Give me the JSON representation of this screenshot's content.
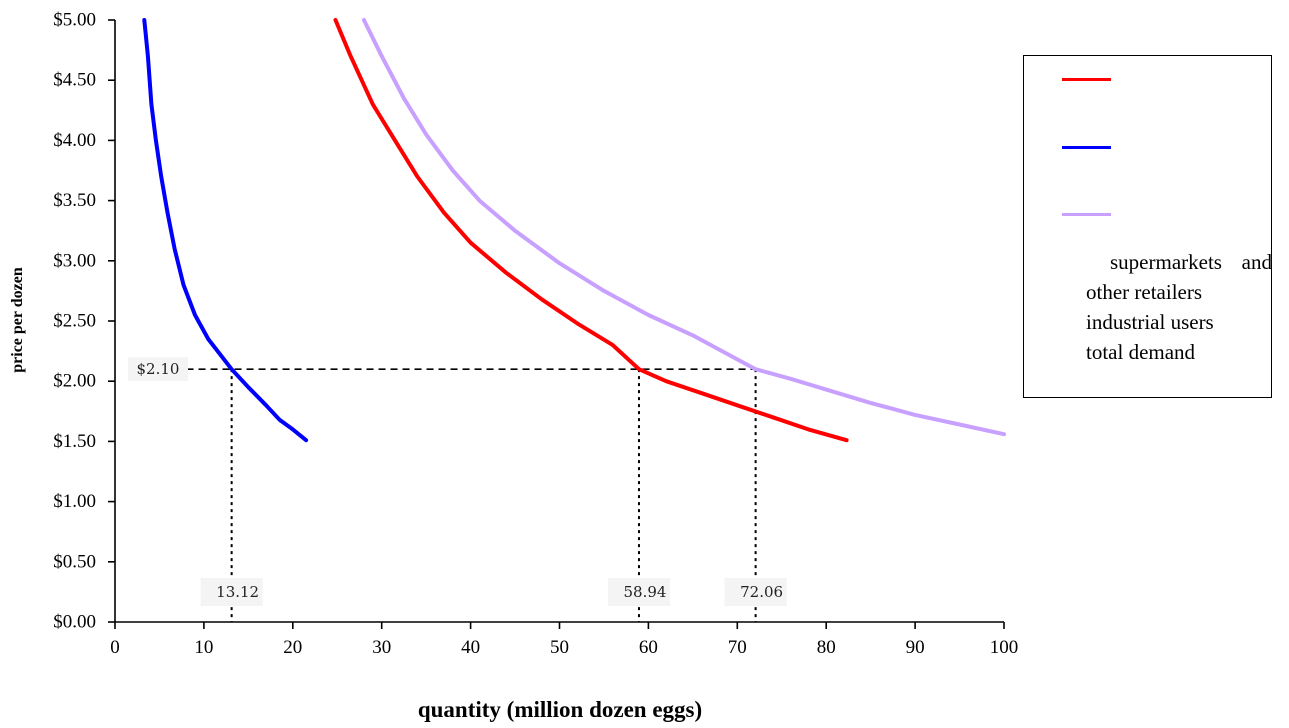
{
  "chart_data": {
    "type": "line",
    "title": "",
    "xlabel": "quantity (million dozen eggs)",
    "ylabel": "price per dozen",
    "xlim": [
      0,
      100
    ],
    "ylim": [
      0,
      5
    ],
    "x_ticks": [
      "0",
      "10",
      "20",
      "30",
      "40",
      "50",
      "60",
      "70",
      "80",
      "90",
      "100"
    ],
    "y_ticks": [
      "$0.00",
      "$0.50",
      "$1.00",
      "$1.50",
      "$2.00",
      "$2.50",
      "$3.00",
      "$3.50",
      "$4.00",
      "$4.50",
      "$5.00"
    ],
    "grid": false,
    "legend_position": "right",
    "legend_text": [
      "supermarkets and other retailers",
      "industrial users",
      "total demand"
    ],
    "series": [
      {
        "color": "#ff0000",
        "points": [
          [
            24.8,
            5.0
          ],
          [
            26.5,
            4.7
          ],
          [
            29,
            4.3
          ],
          [
            31.5,
            4.0
          ],
          [
            34,
            3.7
          ],
          [
            37,
            3.4
          ],
          [
            40,
            3.15
          ],
          [
            44,
            2.9
          ],
          [
            48,
            2.68
          ],
          [
            52,
            2.48
          ],
          [
            56,
            2.3
          ],
          [
            58.94,
            2.1
          ],
          [
            62,
            2.0
          ],
          [
            66,
            1.9
          ],
          [
            70,
            1.8
          ],
          [
            74,
            1.7
          ],
          [
            78,
            1.6
          ],
          [
            82.3,
            1.51
          ]
        ]
      },
      {
        "color": "#0000ff",
        "points": [
          [
            3.3,
            5.0
          ],
          [
            3.7,
            4.7
          ],
          [
            4.1,
            4.3
          ],
          [
            4.6,
            4.0
          ],
          [
            5.2,
            3.7
          ],
          [
            5.9,
            3.4
          ],
          [
            6.7,
            3.1
          ],
          [
            7.7,
            2.8
          ],
          [
            9,
            2.55
          ],
          [
            10.5,
            2.35
          ],
          [
            13.12,
            2.1
          ],
          [
            15,
            1.95
          ],
          [
            17,
            1.8
          ],
          [
            18.5,
            1.68
          ],
          [
            20,
            1.6
          ],
          [
            21.5,
            1.51
          ]
        ]
      },
      {
        "color": "#c8a0ff",
        "points": [
          [
            28,
            5.0
          ],
          [
            30,
            4.7
          ],
          [
            32.5,
            4.35
          ],
          [
            35,
            4.05
          ],
          [
            38,
            3.75
          ],
          [
            41,
            3.5
          ],
          [
            45,
            3.25
          ],
          [
            50,
            2.98
          ],
          [
            55,
            2.75
          ],
          [
            60,
            2.55
          ],
          [
            65,
            2.38
          ],
          [
            72.06,
            2.1
          ],
          [
            76,
            2.02
          ],
          [
            80,
            1.93
          ],
          [
            85,
            1.82
          ],
          [
            90,
            1.72
          ],
          [
            95,
            1.64
          ],
          [
            100,
            1.56
          ]
        ]
      }
    ],
    "annotations": {
      "price": {
        "value": 2.1,
        "label": "$2.10"
      },
      "quantities": [
        {
          "x": 13.12,
          "label": "13.12"
        },
        {
          "x": 58.94,
          "label": "58.94"
        },
        {
          "x": 72.06,
          "label": "72.06"
        }
      ]
    }
  }
}
